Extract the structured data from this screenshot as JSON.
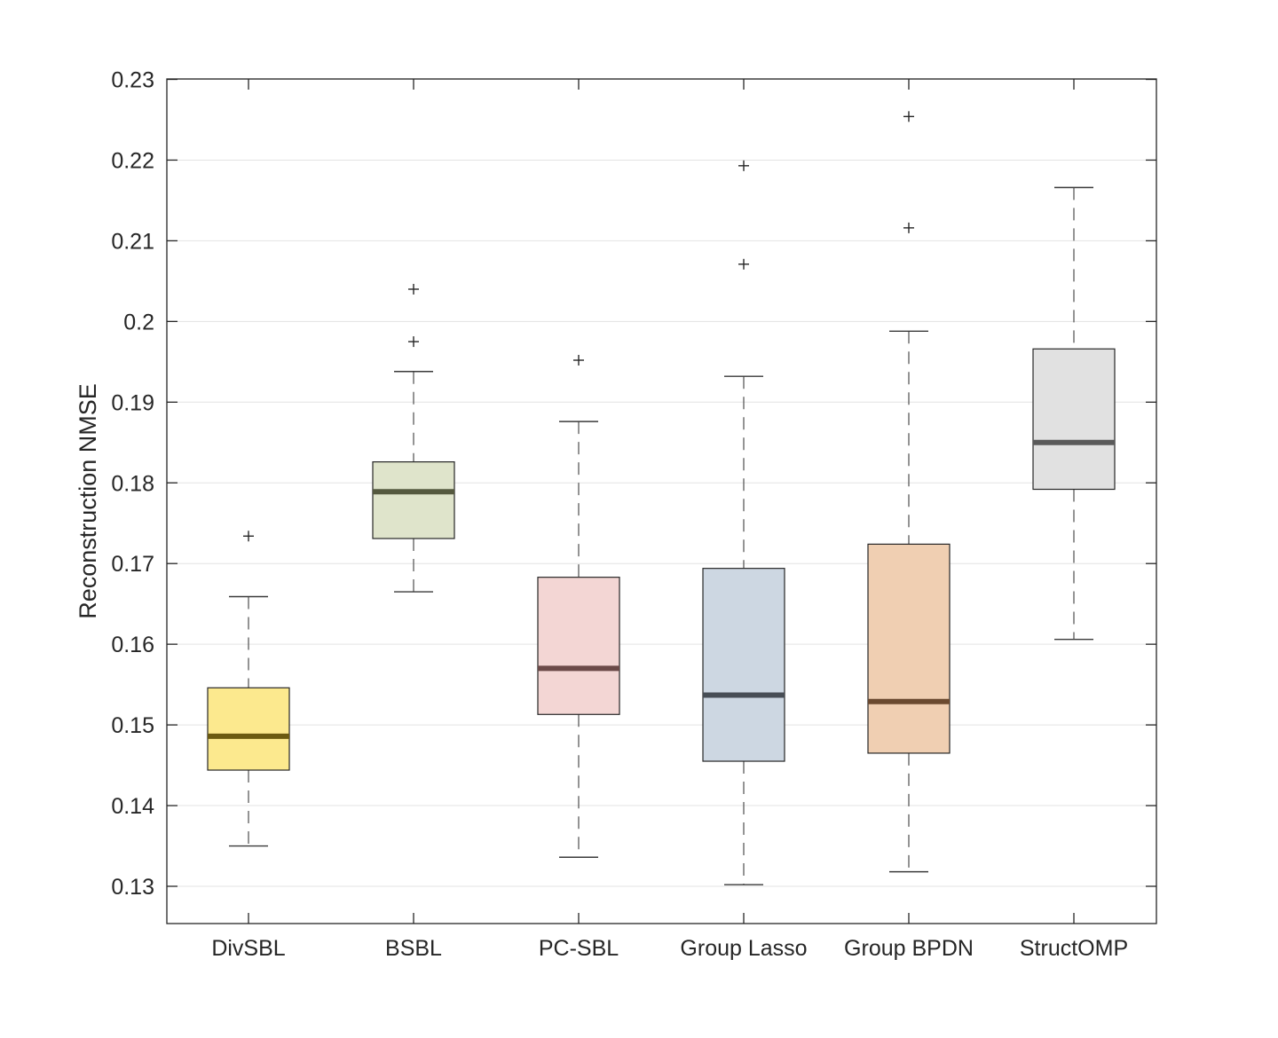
{
  "chart_data": {
    "type": "boxplot",
    "title": "",
    "xlabel": "",
    "ylabel": "Reconstruction NMSE",
    "ylim": [
      0.1255,
      0.2305
    ],
    "yticks": [
      0.13,
      0.14,
      0.15,
      0.16,
      0.17,
      0.18,
      0.19,
      0.2,
      0.21,
      0.22,
      0.23
    ],
    "ytick_labels": [
      "0.13",
      "0.14",
      "0.15",
      "0.16",
      "0.17",
      "0.18",
      "0.19",
      "0.2",
      "0.21",
      "0.22",
      "0.23"
    ],
    "grid": "horizontal",
    "categories": [
      "DivSBL",
      "BSBL",
      "PC-SBL",
      "Group Lasso",
      "Group BPDN",
      "StructOMP"
    ],
    "boxes": [
      {
        "name": "DivSBL",
        "whisker_low": 0.135,
        "q1": 0.1444,
        "median": 0.1486,
        "q3": 0.1546,
        "whisker_high": 0.1659,
        "outliers": [
          0.1734
        ],
        "fill": "#fce98e",
        "median_color": "#6b5a10"
      },
      {
        "name": "BSBL",
        "whisker_low": 0.1665,
        "q1": 0.1731,
        "median": 0.1789,
        "q3": 0.1826,
        "whisker_high": 0.1938,
        "outliers": [
          0.1975,
          0.204
        ],
        "fill": "#dfe4cb",
        "median_color": "#55593f"
      },
      {
        "name": "PC-SBL",
        "whisker_low": 0.1336,
        "q1": 0.1513,
        "median": 0.157,
        "q3": 0.1683,
        "whisker_high": 0.1876,
        "outliers": [
          0.1952
        ],
        "fill": "#f3d6d4",
        "median_color": "#6b4a48"
      },
      {
        "name": "Group Lasso",
        "whisker_low": 0.1302,
        "q1": 0.1455,
        "median": 0.1537,
        "q3": 0.1694,
        "whisker_high": 0.1932,
        "outliers": [
          0.2071,
          0.2193
        ],
        "fill": "#cdd7e2",
        "median_color": "#474d55"
      },
      {
        "name": "Group BPDN",
        "whisker_low": 0.1318,
        "q1": 0.1465,
        "median": 0.1529,
        "q3": 0.1724,
        "whisker_high": 0.1988,
        "outliers": [
          0.2116,
          0.2254
        ],
        "fill": "#f0cfb2",
        "median_color": "#6b4a30"
      },
      {
        "name": "StructOMP",
        "whisker_low": 0.1606,
        "q1": 0.1792,
        "median": 0.185,
        "q3": 0.1966,
        "whisker_high": 0.2166,
        "outliers": [],
        "fill": "#e1e1e1",
        "median_color": "#5a5a5a"
      }
    ]
  }
}
